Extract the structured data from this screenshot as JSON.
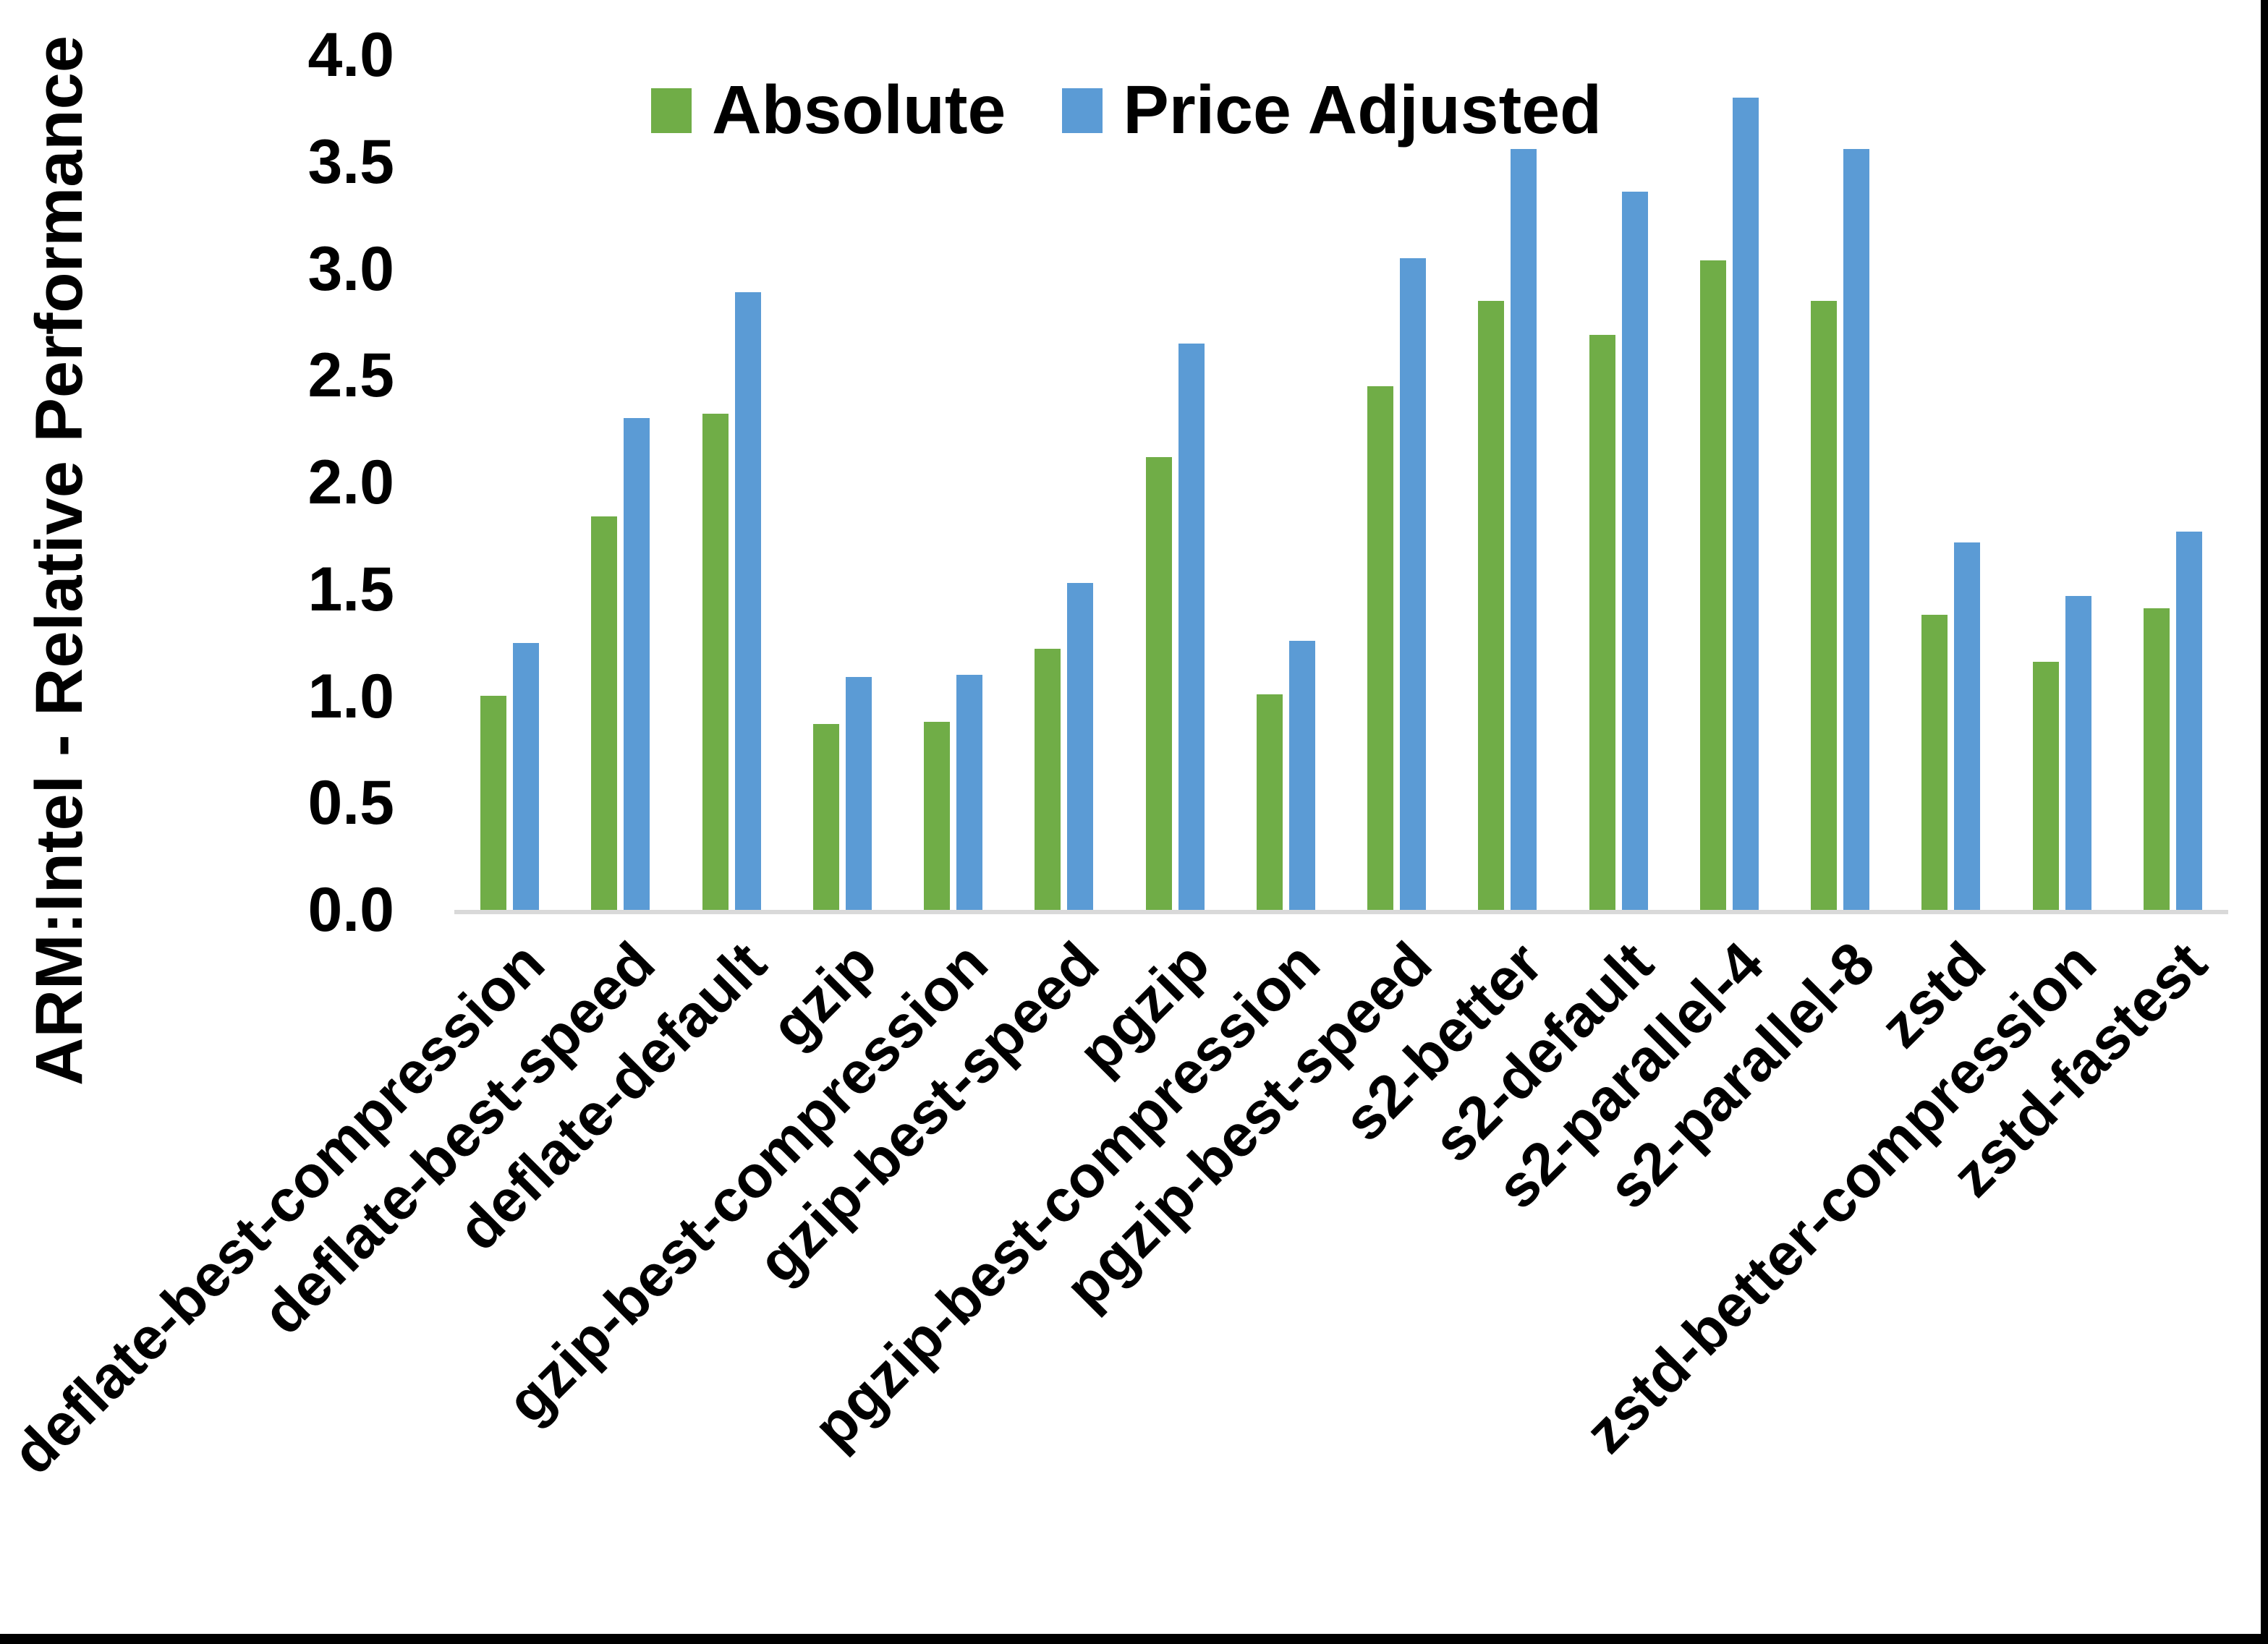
{
  "chart_data": {
    "type": "bar",
    "title": "",
    "xlabel": "",
    "ylabel": "ARM:Intel - Relative Performance",
    "ylim": [
      0.0,
      4.0
    ],
    "ytick_labels": [
      "4.0",
      "3.5",
      "3.0",
      "2.5",
      "2.0",
      "1.5",
      "1.0",
      "0.5",
      "0.0"
    ],
    "grid": false,
    "legend_position": "top-inside",
    "categories": [
      "deflate-best-compression",
      "deflate-best-speed",
      "deflate-default",
      "gzip",
      "gzip-best-compression",
      "gzip-best-speed",
      "pgzip",
      "pgzip-best-compression",
      "pgzip-best-speed",
      "s2-better",
      "s2-default",
      "s2-parallel-4",
      "s2-parallel-8",
      "zstd",
      "zstd-better-compression",
      "zstd-fastest"
    ],
    "series": [
      {
        "name": "Absolute",
        "color": "#70AD47",
        "values": [
          1.0,
          1.84,
          2.32,
          0.87,
          0.88,
          1.22,
          2.12,
          1.01,
          2.45,
          2.85,
          2.69,
          3.04,
          2.85,
          1.38,
          1.16,
          1.41
        ]
      },
      {
        "name": "Price Adjusted",
        "color": "#5B9BD5",
        "values": [
          1.25,
          2.3,
          2.89,
          1.09,
          1.1,
          1.53,
          2.65,
          1.26,
          3.05,
          3.56,
          3.36,
          3.8,
          3.56,
          1.72,
          1.47,
          1.77
        ]
      }
    ]
  },
  "colors": {
    "axis_line": "#d9d9d9",
    "text": "#000000",
    "frame_border": "#000000",
    "background": "#ffffff"
  }
}
